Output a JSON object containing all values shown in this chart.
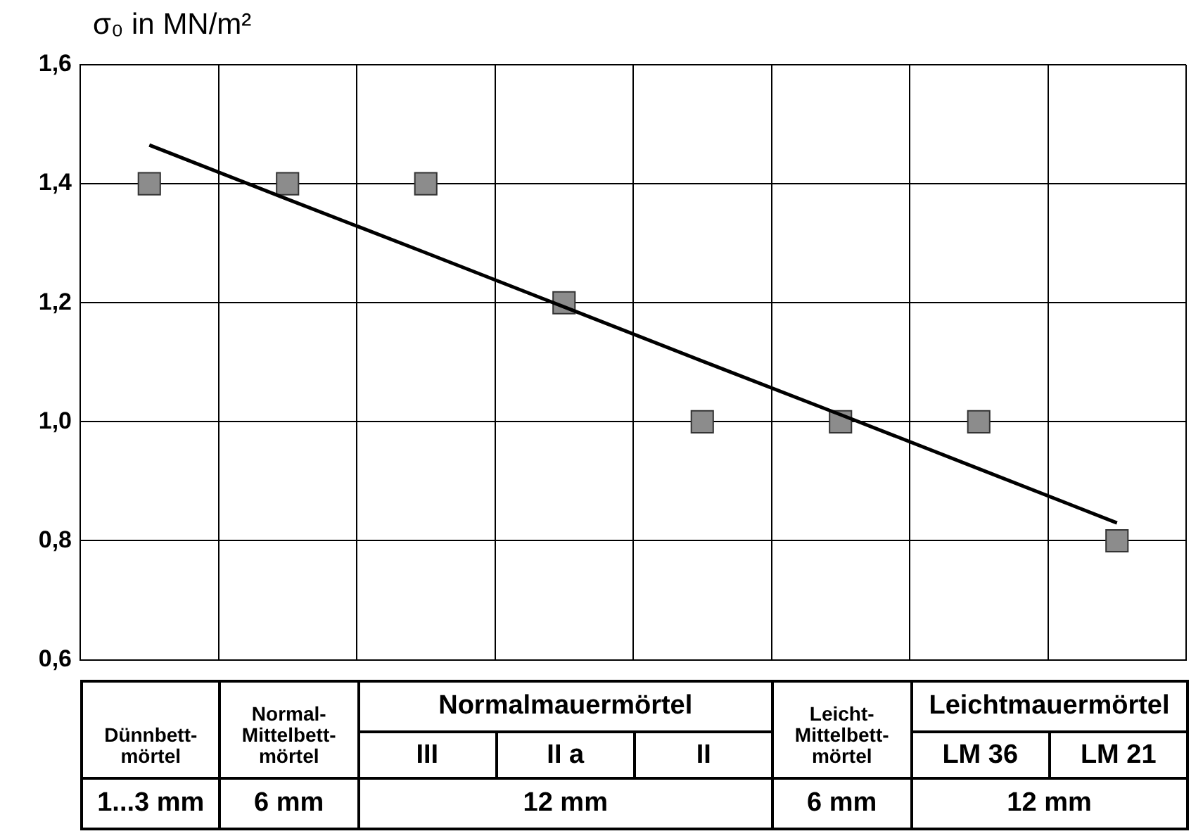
{
  "chart_data": {
    "type": "scatter",
    "ylabel": "σ₀ in MN/m²",
    "categories": [
      "Dünnbett-mörtel",
      "Normal-Mittelbett-mörtel",
      "III",
      "II a",
      "II",
      "Leicht-Mittelbett-mörtel",
      "LM 36",
      "LM 21"
    ],
    "series": [
      {
        "color": "#8c8c8c",
        "marker": "square",
        "values": [
          1.4,
          1.4,
          1.4,
          1.2,
          1.0,
          1.0,
          1.0,
          0.8
        ]
      },
      {
        "type": "line",
        "color": "#000000",
        "marker": "none",
        "values": [
          1.465,
          1.374,
          1.284,
          1.193,
          1.102,
          1.012,
          0.921,
          0.83
        ]
      }
    ],
    "ylim": [
      0.6,
      1.6
    ],
    "yticks": [
      {
        "value": 0.6,
        "label": "0,6"
      },
      {
        "value": 0.8,
        "label": "0,8"
      },
      {
        "value": 1.0,
        "label": "1,0"
      },
      {
        "value": 1.2,
        "label": "1,2"
      },
      {
        "value": 1.4,
        "label": "1,4"
      },
      {
        "value": 1.6,
        "label": "1,6"
      }
    ],
    "grid": true,
    "annotations": [
      "Normalmauermörtel",
      "Leichtmauermörtel",
      "1...3 mm",
      "6 mm",
      "12 mm",
      "6 mm",
      "12 mm"
    ]
  }
}
